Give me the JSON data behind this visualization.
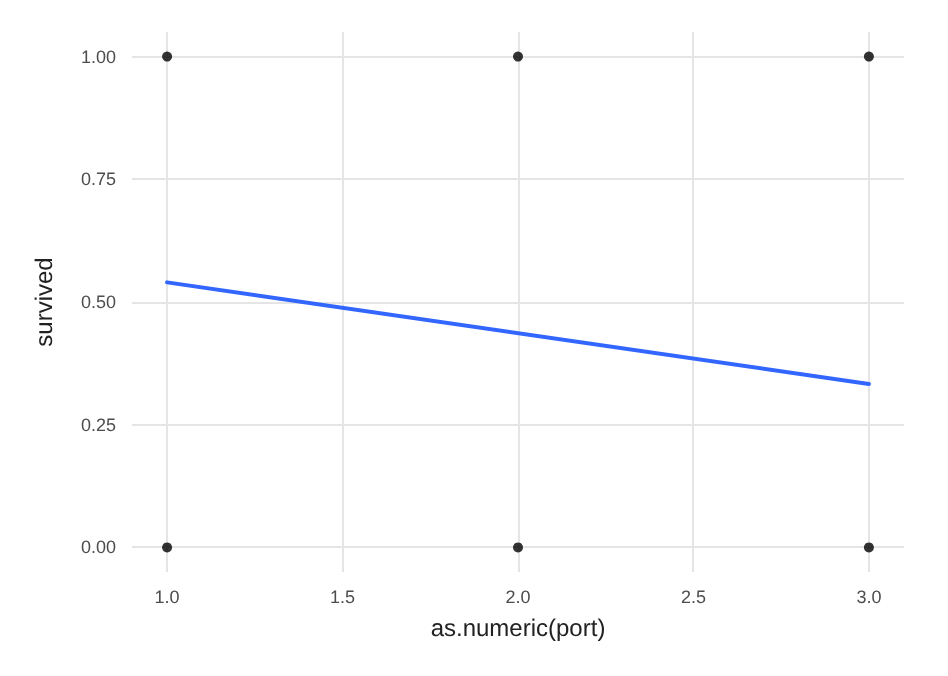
{
  "chart_data": {
    "type": "scatter",
    "xlabel": "as.numeric(port)",
    "ylabel": "survived",
    "xlim": [
      0.9,
      3.1
    ],
    "ylim": [
      -0.05,
      1.05
    ],
    "xticks": [
      {
        "value": 1,
        "label": "1.0"
      },
      {
        "value": 1.5,
        "label": "1.5"
      },
      {
        "value": 2,
        "label": "2.0"
      },
      {
        "value": 2.5,
        "label": "2.5"
      },
      {
        "value": 3,
        "label": "3.0"
      }
    ],
    "yticks": [
      {
        "value": 0,
        "label": "0.00"
      },
      {
        "value": 0.25,
        "label": "0.25"
      },
      {
        "value": 0.5,
        "label": "0.50"
      },
      {
        "value": 0.75,
        "label": "0.75"
      },
      {
        "value": 1,
        "label": "1.00"
      }
    ],
    "grid": true,
    "marker": "circle",
    "series": [
      {
        "color": "#000000",
        "x": [
          1,
          1,
          2,
          2,
          3,
          3
        ],
        "values": [
          1,
          0,
          1,
          0,
          1,
          0
        ]
      },
      {
        "type": "line",
        "color": "#3366ff",
        "line_style": "solid",
        "marker": "none",
        "x": [
          1,
          3
        ],
        "values": [
          0.54,
          0.333
        ]
      }
    ]
  }
}
